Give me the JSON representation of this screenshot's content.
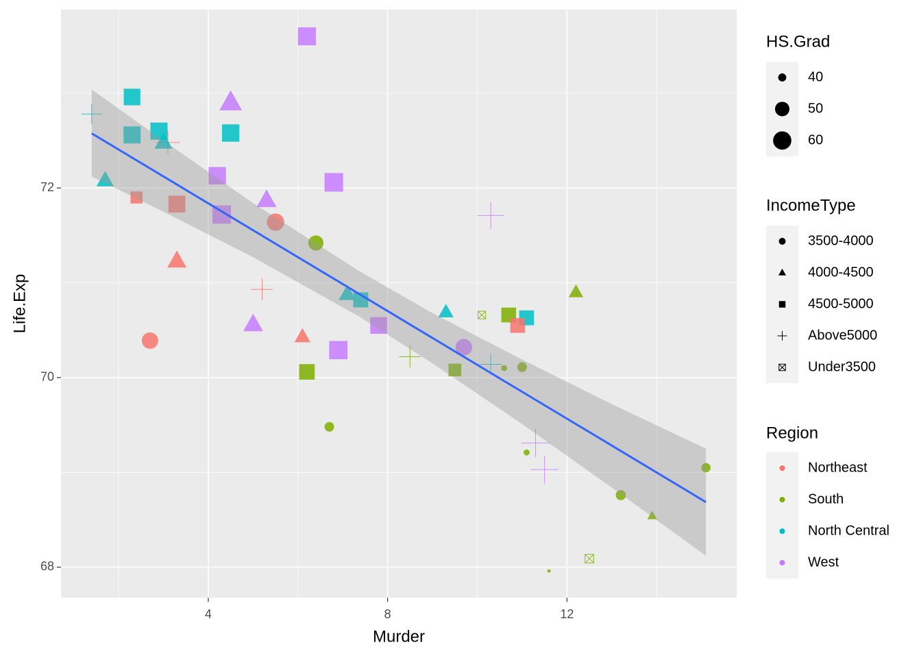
{
  "chart_data": {
    "type": "scatter",
    "x_label": "Murder",
    "y_label": "Life.Exp",
    "xlim": [
      0.715,
      15.785
    ],
    "ylim": [
      67.678,
      73.882
    ],
    "xticks": [
      4,
      8,
      12
    ],
    "yticks": [
      68,
      70,
      72
    ],
    "xminor": [
      2,
      6,
      10,
      14
    ],
    "yminor": [
      69,
      71,
      73
    ],
    "grid": true,
    "x": [
      15.1,
      11.3,
      7.8,
      10.1,
      10.3,
      6.8,
      3.1,
      6.2,
      10.7,
      13.9,
      6.2,
      5.3,
      10.3,
      7.1,
      2.3,
      4.5,
      10.6,
      13.2,
      2.7,
      8.5,
      3.3,
      11.1,
      2.3,
      12.5,
      9.3,
      5.0,
      2.9,
      11.5,
      3.3,
      5.2,
      9.7,
      10.9,
      11.1,
      1.4,
      7.4,
      6.4,
      4.2,
      6.1,
      2.4,
      11.6,
      1.7,
      11.0,
      12.2,
      4.5,
      5.5,
      9.5,
      4.3,
      6.7,
      3.0,
      6.9
    ],
    "y": [
      69.05,
      69.31,
      70.55,
      70.66,
      71.71,
      72.06,
      72.48,
      70.06,
      70.66,
      68.54,
      73.6,
      71.87,
      70.14,
      70.88,
      72.56,
      72.58,
      70.1,
      68.76,
      70.39,
      70.22,
      71.83,
      70.63,
      72.96,
      68.09,
      70.69,
      70.56,
      72.6,
      69.03,
      71.23,
      70.93,
      70.32,
      70.55,
      69.21,
      72.78,
      70.82,
      71.42,
      72.13,
      70.43,
      71.9,
      67.96,
      72.08,
      70.11,
      70.9,
      72.9,
      71.64,
      70.08,
      71.72,
      69.48,
      72.48,
      70.29
    ],
    "size": [
      41.3,
      66.7,
      58.1,
      39.9,
      62.6,
      63.9,
      56.0,
      54.6,
      52.6,
      40.6,
      61.9,
      59.5,
      52.6,
      52.9,
      59.0,
      59.9,
      38.5,
      42.2,
      54.7,
      52.3,
      58.5,
      52.8,
      57.6,
      41.0,
      48.8,
      59.2,
      59.3,
      65.2,
      57.6,
      52.5,
      55.2,
      52.7,
      38.5,
      50.3,
      53.2,
      51.6,
      60.0,
      50.2,
      46.4,
      37.8,
      53.3,
      41.8,
      47.4,
      67.3,
      57.1,
      47.8,
      63.5,
      41.6,
      54.5,
      62.9
    ],
    "income_type": [
      "3500-4000",
      "Above5000",
      "4500-5000",
      "Under3500",
      "Above5000",
      "4500-5000",
      "Above5000",
      "4500-5000",
      "4500-5000",
      "4000-4500",
      "4500-5000",
      "4000-4500",
      "Above5000",
      "4000-4500",
      "4500-5000",
      "4500-5000",
      "3500-4000",
      "3500-4000",
      "3500-4000",
      "Above5000",
      "4500-5000",
      "4500-5000",
      "4500-5000",
      "Under3500",
      "4000-4500",
      "4000-4500",
      "4500-5000",
      "Above5000",
      "4000-4500",
      "Above5000",
      "3500-4000",
      "4500-5000",
      "3500-4000",
      "Above5000",
      "4500-5000",
      "3500-4000",
      "4500-5000",
      "4000-4500",
      "4500-5000",
      "3500-4000",
      "4000-4500",
      "3500-4000",
      "4000-4500",
      "4000-4500",
      "3500-4000",
      "4500-5000",
      "4500-5000",
      "3500-4000",
      "4000-4500",
      "4500-5000"
    ],
    "region": [
      "South",
      "West",
      "West",
      "South",
      "West",
      "West",
      "Northeast",
      "South",
      "South",
      "South",
      "West",
      "West",
      "North Central",
      "North Central",
      "North Central",
      "North Central",
      "South",
      "South",
      "Northeast",
      "South",
      "Northeast",
      "North Central",
      "North Central",
      "South",
      "North Central",
      "West",
      "North Central",
      "West",
      "Northeast",
      "Northeast",
      "West",
      "Northeast",
      "South",
      "North Central",
      "North Central",
      "South",
      "West",
      "Northeast",
      "Northeast",
      "South",
      "North Central",
      "South",
      "South",
      "West",
      "Northeast",
      "South",
      "West",
      "South",
      "North Central",
      "West"
    ],
    "fit": {
      "color": "#3366ff",
      "band_color": "#999999",
      "x": [
        1.4,
        3,
        5,
        7.38,
        9,
        11,
        13,
        15.1
      ],
      "y": [
        72.576,
        72.122,
        71.554,
        70.878,
        70.418,
        69.85,
        69.283,
        68.686
      ],
      "lower": [
        72.12,
        71.75,
        71.27,
        70.64,
        70.15,
        69.51,
        68.84,
        68.12
      ],
      "upper": [
        73.04,
        72.5,
        71.84,
        71.12,
        70.68,
        70.19,
        69.72,
        69.25
      ]
    },
    "size_legend": {
      "title": "HS.Grad",
      "values": [
        40,
        50,
        60
      ]
    },
    "shape_legend": {
      "title": "IncomeType",
      "categories": [
        "3500-4000",
        "4000-4500",
        "4500-5000",
        "Above5000",
        "Under3500"
      ],
      "shapes": [
        "circle",
        "triangle",
        "square",
        "plus",
        "boxx"
      ]
    },
    "color_legend": {
      "title": "Region",
      "categories": [
        "Northeast",
        "South",
        "North Central",
        "West"
      ],
      "colors": [
        "#f8766d",
        "#7cae00",
        "#00bfc4",
        "#c77cff"
      ]
    }
  }
}
